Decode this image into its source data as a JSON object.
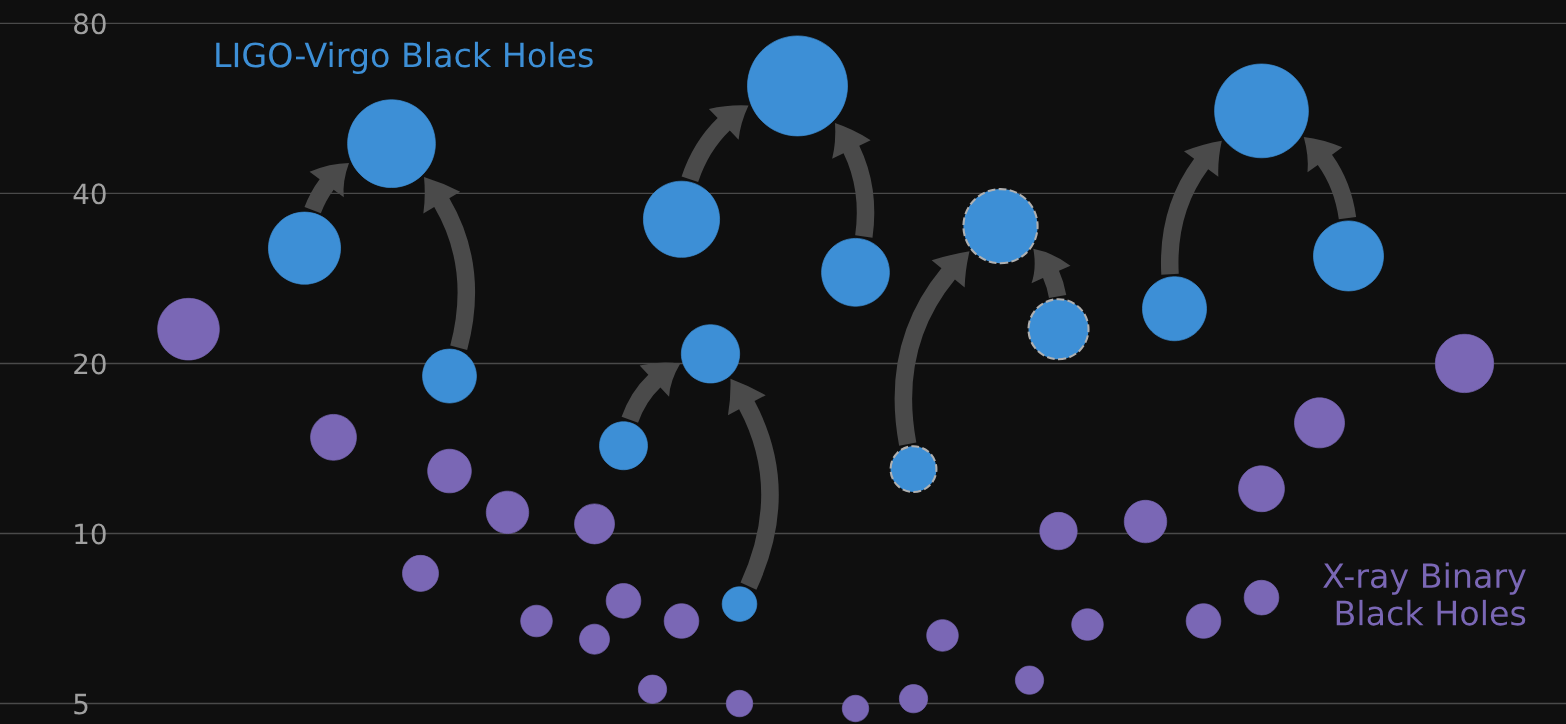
{
  "chart_data": {
    "type": "bubble",
    "categories": [
      null,
      null,
      null,
      null,
      null,
      null,
      null,
      null,
      null,
      null,
      null,
      null,
      null,
      null,
      null,
      null,
      null,
      null,
      null,
      null,
      null,
      null,
      null,
      null,
      null,
      null,
      null,
      null,
      null,
      null,
      null,
      null,
      null,
      null,
      null,
      null,
      null,
      null,
      null,
      null,
      null,
      null,
      null,
      null,
      null,
      null,
      null,
      null,
      null,
      null,
      null,
      null,
      null,
      null
    ],
    "ylim": [
      4.6,
      88
    ],
    "yticks": [
      5,
      10,
      20,
      40,
      80
    ],
    "log": true,
    "grid": "y",
    "legend": false,
    "series": [
      {
        "name": "LIGO-Virgo Black Holes",
        "color": "#3d8fd6",
        "values": [
          null,
          null,
          null,
          null,
          null,
          null,
          null,
          null,
          null,
          null,
          32,
          null,
          null,
          49,
          null,
          19,
          null,
          null,
          null,
          null,
          null,
          14.3,
          null,
          36,
          20.8,
          7.5,
          null,
          62,
          null,
          29,
          null,
          null,
          null,
          null,
          null,
          null,
          null,
          null,
          null,
          null,
          25,
          null,
          null,
          56,
          null,
          null,
          31,
          null,
          null,
          null,
          null,
          null,
          null,
          null
        ],
        "sizes": [
          null,
          null,
          null,
          null,
          null,
          null,
          null,
          null,
          null,
          null,
          0.52,
          null,
          null,
          0.77,
          null,
          0.29,
          null,
          null,
          null,
          null,
          null,
          0.23,
          null,
          0.58,
          0.34,
          0.12,
          null,
          1,
          null,
          0.46,
          null,
          null,
          null,
          null,
          null,
          null,
          null,
          null,
          null,
          null,
          0.41,
          null,
          null,
          0.88,
          null,
          null,
          0.49,
          null,
          null,
          null,
          null,
          null,
          null,
          null
        ]
      },
      {
        "color": "#3d8fd6",
        "line_style": "dashed",
        "values": [
          null,
          null,
          null,
          null,
          null,
          null,
          null,
          null,
          null,
          null,
          null,
          null,
          null,
          null,
          null,
          null,
          null,
          null,
          null,
          null,
          null,
          null,
          null,
          null,
          null,
          null,
          null,
          null,
          null,
          null,
          null,
          13,
          null,
          null,
          35,
          null,
          23,
          null,
          null,
          null,
          null,
          null,
          null,
          null,
          null,
          null,
          null,
          null,
          null,
          null,
          null,
          null,
          null,
          null
        ],
        "sizes": [
          null,
          null,
          null,
          null,
          null,
          null,
          null,
          null,
          null,
          null,
          null,
          null,
          null,
          null,
          null,
          null,
          null,
          null,
          null,
          null,
          null,
          null,
          null,
          null,
          null,
          null,
          null,
          null,
          null,
          null,
          null,
          0.21,
          null,
          null,
          0.55,
          null,
          0.36,
          null,
          null,
          null,
          null,
          null,
          null,
          null,
          null,
          null,
          null,
          null,
          null,
          null,
          null,
          null,
          null,
          null
        ]
      },
      {
        "name": "X-ray Binary Black Holes",
        "color": "#7a67b5",
        "values": [
          null,
          null,
          null,
          null,
          null,
          null,
          23,
          null,
          null,
          null,
          null,
          14.8,
          null,
          null,
          8.5,
          12.9,
          null,
          10.9,
          7,
          null,
          10.4,
          7.6,
          5.3,
          7,
          null,
          5,
          null,
          null,
          null,
          4.9,
          null,
          5.1,
          6.6,
          null,
          null,
          5.5,
          10.1,
          6.9,
          null,
          10.5,
          null,
          7,
          null,
          12,
          null,
          15.7,
          null,
          null,
          null,
          null,
          20,
          null,
          null,
          null
        ],
        "sizes": [
          null,
          null,
          null,
          null,
          null,
          null,
          0.38,
          null,
          null,
          null,
          null,
          0.21,
          null,
          null,
          0.13,
          0.19,
          null,
          0.18,
          0.1,
          null,
          0.16,
          0.12,
          0.08,
          0.12,
          null,
          0.07,
          null,
          null,
          null,
          0.07,
          null,
          0.08,
          0.1,
          null,
          null,
          0.08,
          0.14,
          0.1,
          null,
          0.18,
          null,
          0.12,
          null,
          0.21,
          null,
          0.25,
          null,
          null,
          null,
          null,
          0.34,
          null,
          null,
          null
        ]
      },
      {
        "color": "#7a67b5",
        "values": [
          null,
          null,
          null,
          null,
          null,
          null,
          null,
          null,
          null,
          null,
          null,
          null,
          null,
          null,
          null,
          null,
          null,
          null,
          null,
          null,
          6.5,
          null,
          null,
          null,
          null,
          null,
          null,
          null,
          null,
          null,
          null,
          null,
          null,
          null,
          null,
          null,
          null,
          null,
          null,
          null,
          null,
          null,
          null,
          7.7,
          null,
          null,
          null,
          null,
          null,
          null,
          null,
          null,
          null,
          null
        ],
        "sizes": [
          null,
          null,
          null,
          null,
          null,
          null,
          null,
          null,
          null,
          null,
          null,
          null,
          null,
          null,
          null,
          null,
          null,
          null,
          null,
          null,
          0.09,
          null,
          null,
          null,
          null,
          null,
          null,
          null,
          null,
          null,
          null,
          null,
          null,
          null,
          null,
          null,
          null,
          null,
          null,
          null,
          null,
          null,
          null,
          0.12,
          null,
          null,
          null,
          null,
          null,
          null,
          null,
          null,
          null,
          null
        ]
      }
    ]
  }
}
